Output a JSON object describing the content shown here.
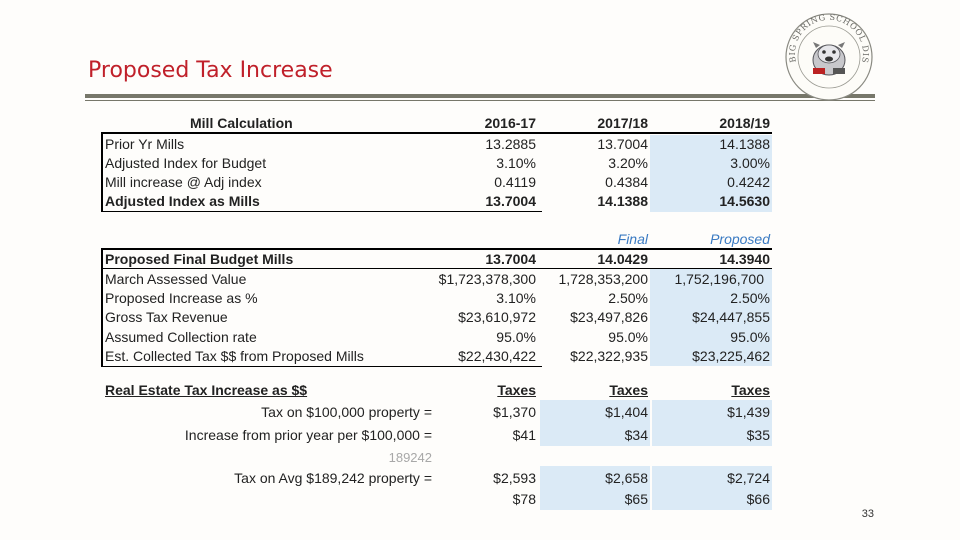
{
  "slide": {
    "title": "Proposed Tax Increase",
    "page_number": "33"
  },
  "logo": {
    "text": "BIG SPRING SCHOOL DISTRICT",
    "icon": "bulldog-seal-icon"
  },
  "mill_calc": {
    "header": {
      "label": "Mill Calculation",
      "col1": "2016-17",
      "col2": "2017/18",
      "col3": "2018/19"
    },
    "rows": [
      {
        "label": "Prior Yr Mills",
        "col1": "13.2885",
        "col2": "13.7004",
        "col3": "14.1388"
      },
      {
        "label": "Adjusted Index for Budget",
        "col1": "3.10%",
        "col2": "3.20%",
        "col3": "3.00%"
      },
      {
        "label": "Mill increase @ Adj index",
        "col1": "0.4119",
        "col2": "0.4384",
        "col3": "0.4242"
      },
      {
        "label": "Adjusted Index as Mills",
        "col1": "13.7004",
        "col2": "14.1388",
        "col3": "14.5630"
      }
    ]
  },
  "budget": {
    "status_col2": "Final",
    "status_col3": "Proposed",
    "header": {
      "label": "Proposed Final Budget Mills",
      "col1": "13.7004",
      "col2": "14.0429",
      "col3": "14.3940"
    },
    "rows": [
      {
        "label": "March Assessed Value",
        "col1": "$1,723,378,300",
        "col2": "1,728,353,200",
        "col3": "1,752,196,700"
      },
      {
        "label": "Proposed Increase as %",
        "col1": "3.10%",
        "col2": "2.50%",
        "col3": "2.50%"
      },
      {
        "label": "Gross Tax Revenue",
        "col1": "$23,610,972",
        "col2": "$23,497,826",
        "col3": "$24,447,855"
      },
      {
        "label": "Assumed Collection rate",
        "col1": "95.0%",
        "col2": "95.0%",
        "col3": "95.0%"
      },
      {
        "label": "Est. Collected Tax $$ from Proposed Mills",
        "col1": "$22,430,422",
        "col2": "$22,322,935",
        "col3": "$23,225,462"
      }
    ]
  },
  "real_estate": {
    "header": {
      "label": "Real Estate Tax Increase as $$",
      "col1": "Taxes",
      "col2": "Taxes",
      "col3": "Taxes"
    },
    "tax_100k": {
      "label": "Tax on $100,000 property =",
      "col1": "$1,370",
      "col2": "$1,404",
      "col3": "$1,439"
    },
    "increase_100k": {
      "label": "Increase from prior year per $100,000 =",
      "col1": "$41",
      "col2": "$34",
      "col3": "$35"
    },
    "avg_value": "189242",
    "tax_avg": {
      "label": "Tax on Avg $189,242 property =",
      "col1": "$2,593",
      "col2": "$2,658",
      "col3": "$2,724"
    },
    "increase_avg": {
      "col1": "$78",
      "col2": "$65",
      "col3": "$66"
    }
  }
}
